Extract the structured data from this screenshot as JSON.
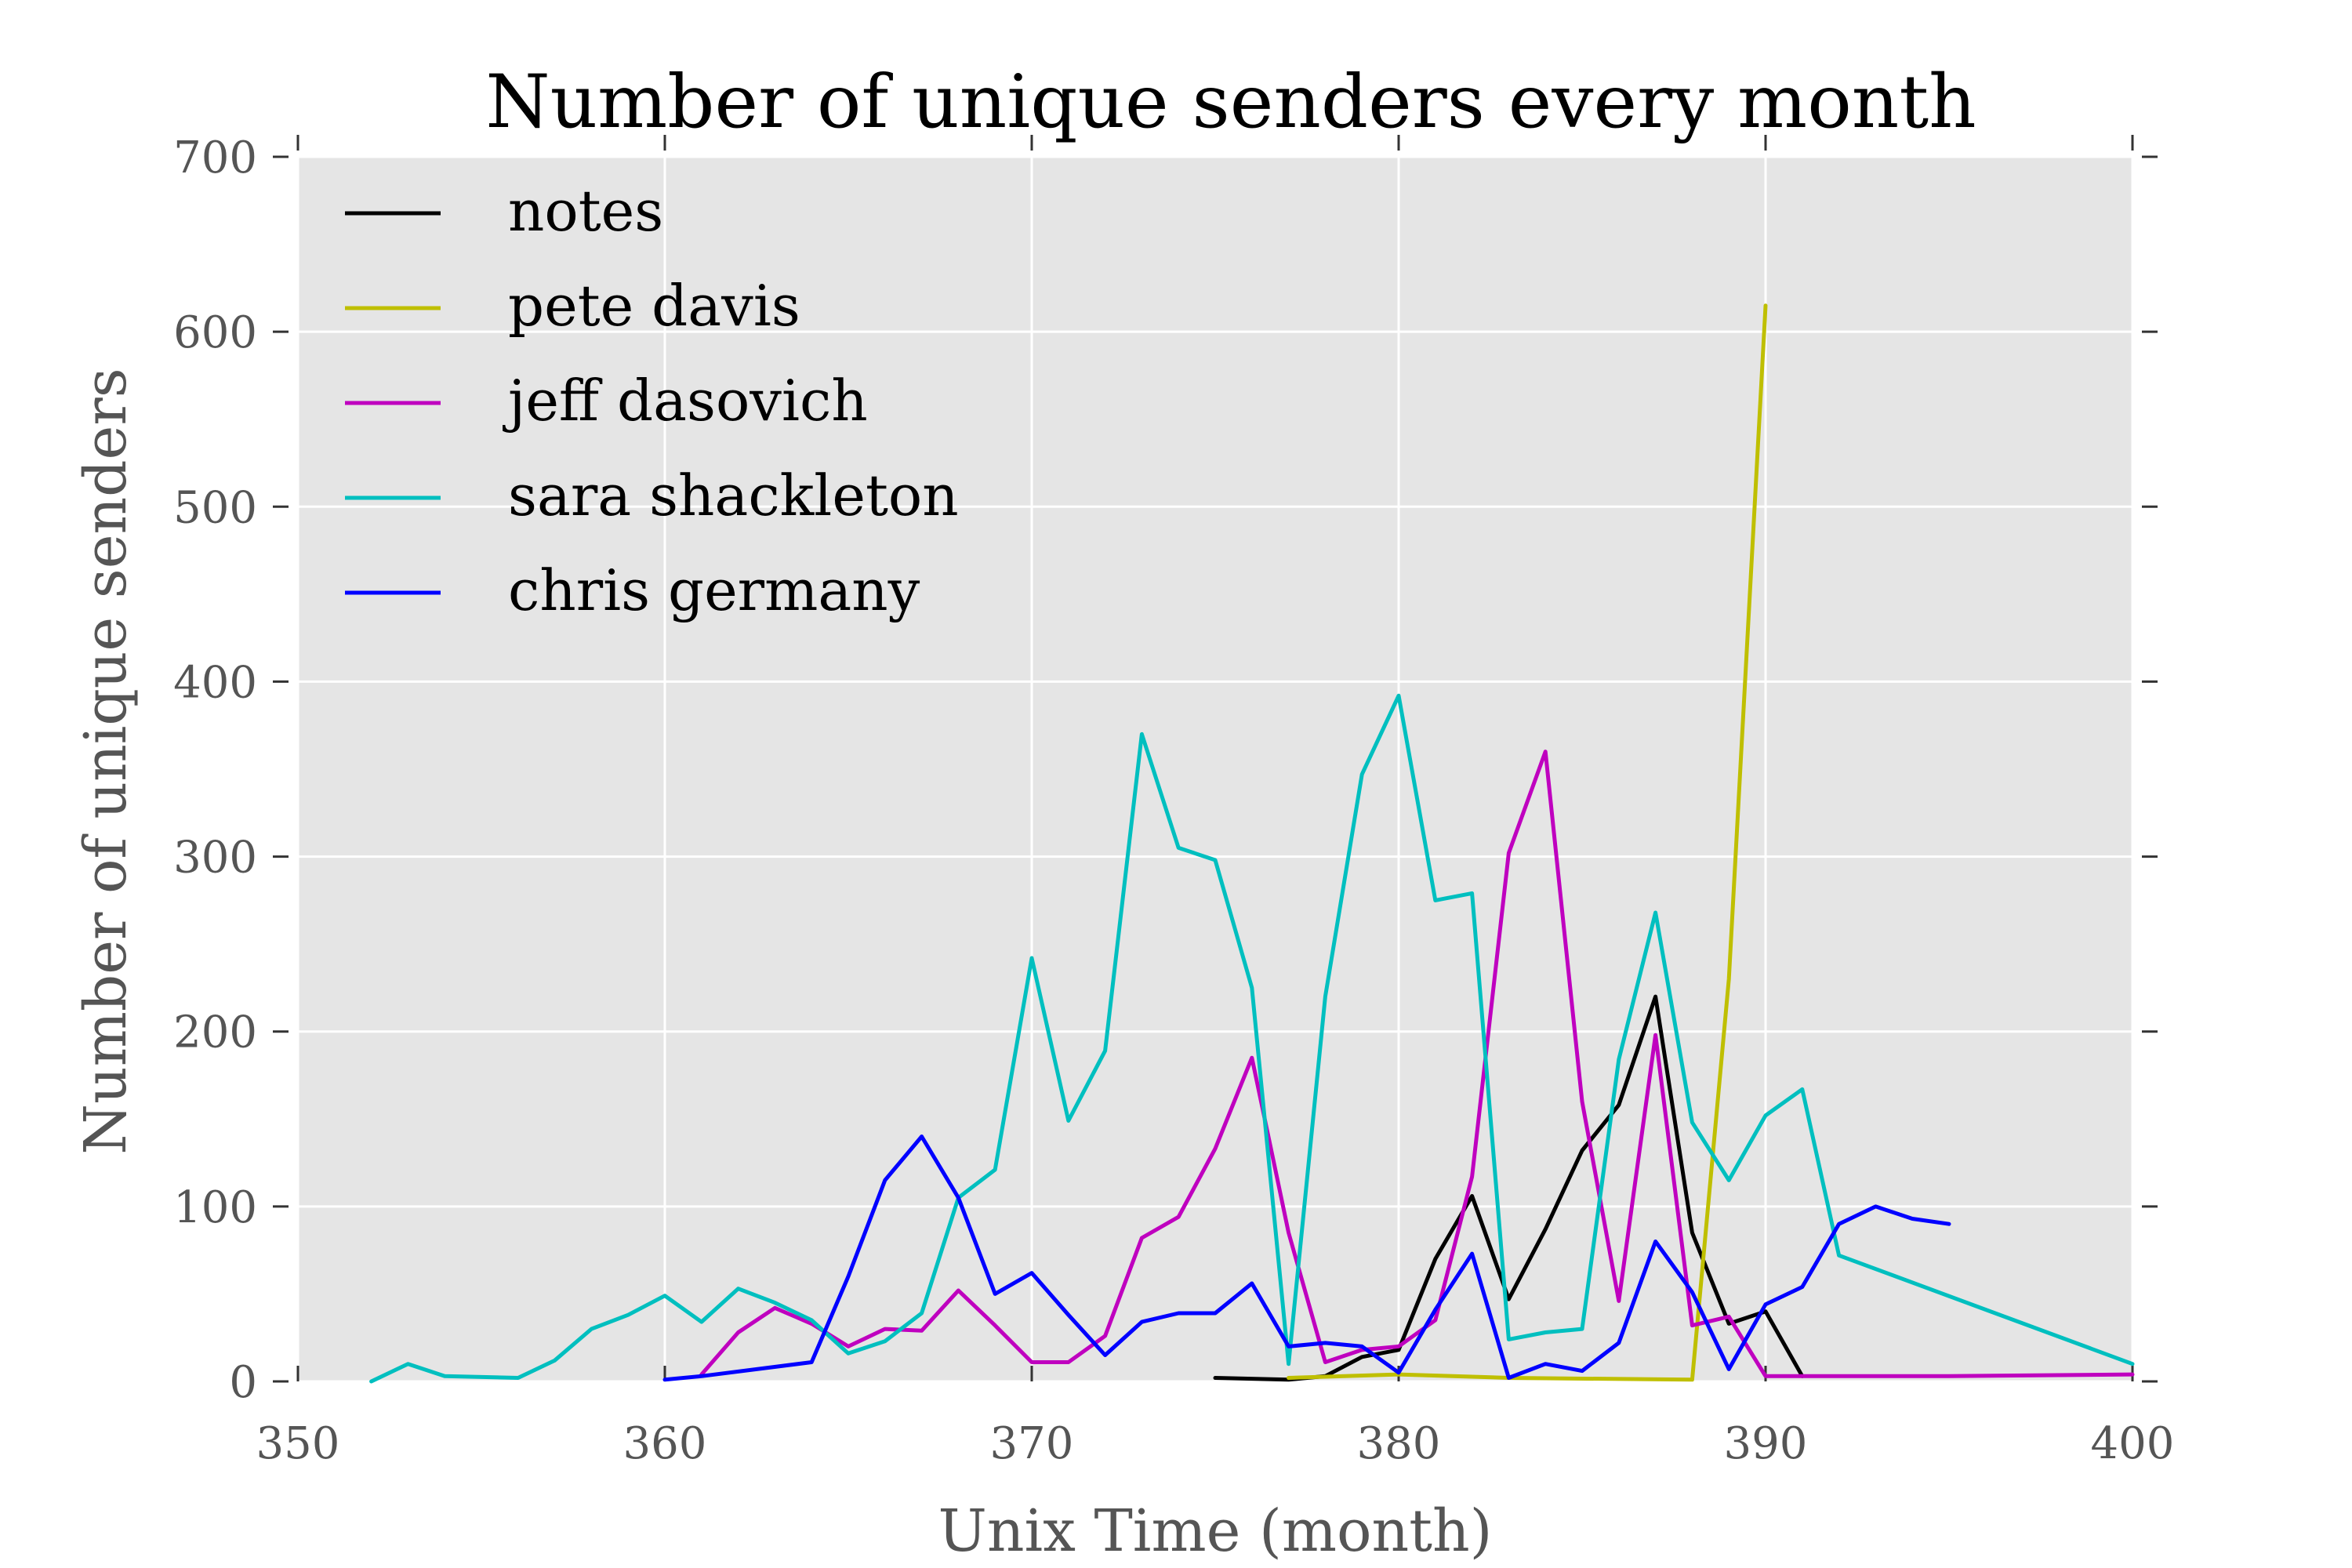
{
  "chart_data": {
    "type": "line",
    "title": "Number of unique senders every month",
    "xlabel": "Unix Time (month)",
    "ylabel": "Number of unique senders",
    "xlim": [
      350,
      400
    ],
    "ylim": [
      0,
      700
    ],
    "xticks": [
      "350",
      "360",
      "370",
      "380",
      "390",
      "400"
    ],
    "yticks": [
      "0",
      "100",
      "200",
      "300",
      "400",
      "500",
      "600",
      "700"
    ],
    "grid": true,
    "legend_position": "top-left",
    "background_color": "#e5e5e5",
    "series": [
      {
        "name": "notes",
        "color": "#000000",
        "x": [
          375,
          377,
          378,
          379,
          380,
          381,
          382,
          383,
          384,
          385,
          386,
          387,
          388,
          389,
          390,
          391
        ],
        "y": [
          2,
          1,
          3,
          14,
          18,
          70,
          106,
          47,
          87,
          132,
          158,
          220,
          85,
          33,
          40,
          3
        ]
      },
      {
        "name": "pete davis",
        "color": "#bfbf00",
        "x": [
          377,
          380,
          383,
          388,
          389,
          390
        ],
        "y": [
          2,
          4,
          2,
          1,
          230,
          615
        ]
      },
      {
        "name": "jeff dasovich",
        "color": "#bf00bf",
        "x": [
          361,
          362,
          363,
          364,
          365,
          366,
          367,
          368,
          369,
          370,
          371,
          372,
          373,
          374,
          375,
          376,
          377,
          378,
          379,
          380,
          381,
          382,
          383,
          384,
          385,
          386,
          387,
          388,
          389,
          390,
          395,
          400
        ],
        "y": [
          4,
          28,
          42,
          33,
          20,
          30,
          29,
          52,
          32,
          11,
          11,
          26,
          82,
          94,
          133,
          185,
          85,
          11,
          18,
          20,
          35,
          117,
          302,
          360,
          160,
          46,
          198,
          32,
          37,
          3,
          3,
          4
        ]
      },
      {
        "name": "sara shackleton",
        "color": "#00bfbf",
        "x": [
          352,
          353,
          354,
          356,
          357,
          358,
          359,
          360,
          361,
          362,
          363,
          364,
          365,
          366,
          367,
          368,
          369,
          370,
          371,
          372,
          373,
          374,
          375,
          376,
          377,
          378,
          379,
          380,
          381,
          382,
          383,
          384,
          385,
          386,
          387,
          388,
          389,
          390,
          391,
          392,
          400
        ],
        "y": [
          0,
          10,
          3,
          2,
          12,
          30,
          38,
          49,
          34,
          53,
          45,
          35,
          16,
          23,
          39,
          105,
          121,
          242,
          149,
          189,
          370,
          305,
          298,
          225,
          10,
          220,
          347,
          392,
          275,
          279,
          24,
          28,
          30,
          184,
          268,
          148,
          115,
          152,
          167,
          72,
          10
        ]
      },
      {
        "name": "chris germany",
        "color": "#0000ff",
        "x": [
          360,
          361,
          364,
          365,
          366,
          367,
          368,
          369,
          370,
          371,
          372,
          373,
          374,
          375,
          376,
          377,
          378,
          379,
          380,
          381,
          382,
          383,
          384,
          385,
          386,
          387,
          388,
          389,
          390,
          391,
          392,
          393,
          394,
          395
        ],
        "y": [
          1,
          3,
          11,
          60,
          115,
          140,
          105,
          50,
          62,
          38,
          15,
          34,
          39,
          39,
          56,
          20,
          22,
          20,
          5,
          41,
          73,
          2,
          10,
          6,
          22,
          80,
          51,
          7,
          44,
          54,
          90,
          100,
          93,
          90
        ]
      }
    ]
  }
}
